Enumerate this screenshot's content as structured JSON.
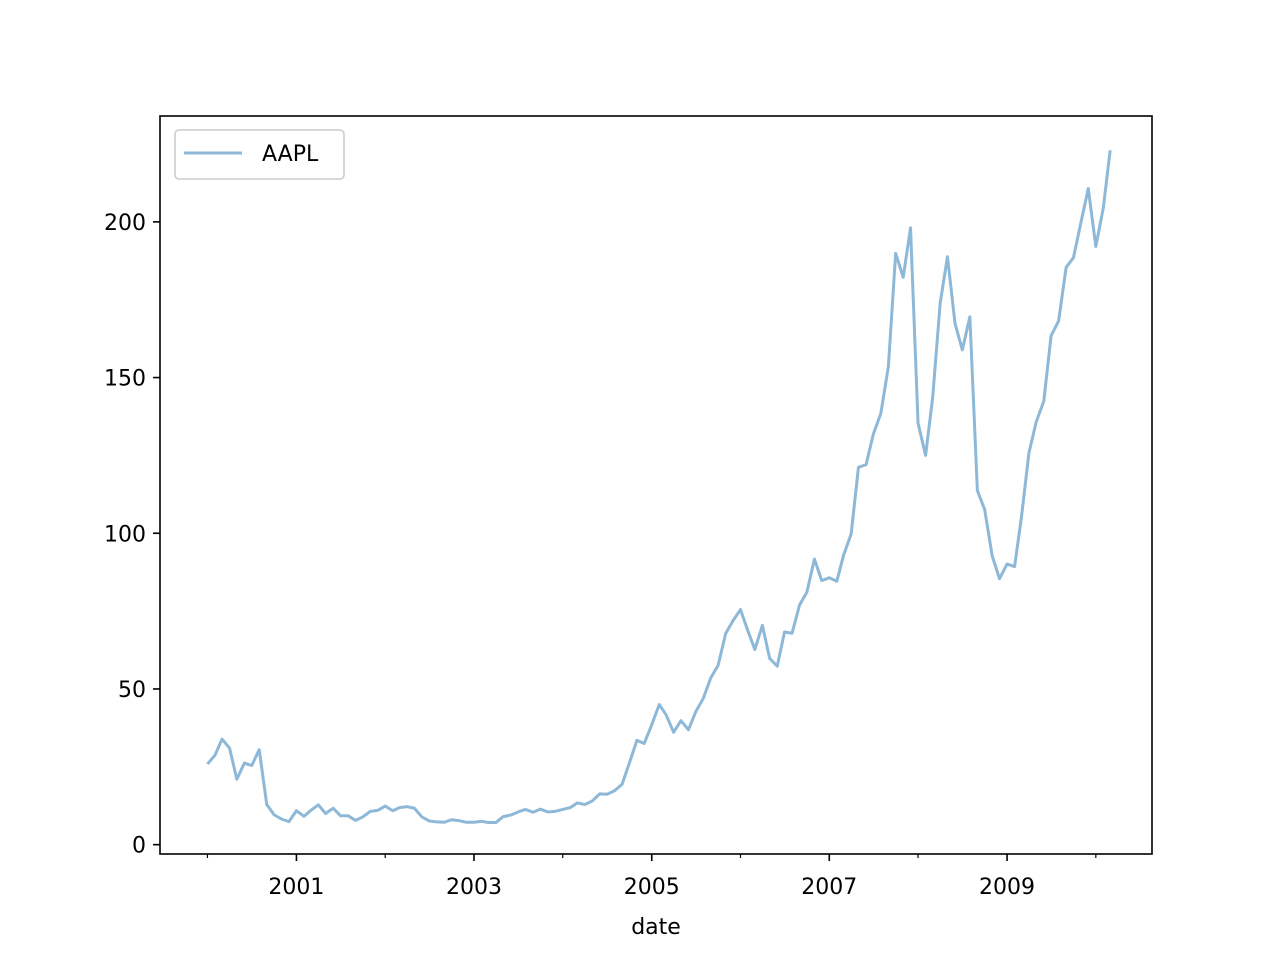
{
  "chart_data": {
    "type": "line",
    "title": "",
    "xlabel": "date",
    "ylabel": "",
    "x_tick_labels": [
      "2001",
      "2003",
      "2005",
      "2007",
      "2009"
    ],
    "x_tick_years": [
      2001,
      2003,
      2005,
      2007,
      2009
    ],
    "x_minor_tick_years": [
      2000,
      2002,
      2004,
      2006,
      2008,
      2010
    ],
    "y_ticks": [
      0,
      50,
      100,
      150,
      200
    ],
    "xlim": [
      "1999-06-20",
      "2010-08-20"
    ],
    "ylim": [
      -3,
      234
    ],
    "grid": false,
    "legend_position": "upper left",
    "series": [
      {
        "name": "AAPL",
        "color": "#8db8d8",
        "x": [
          "2000-01",
          "2000-02",
          "2000-03",
          "2000-04",
          "2000-05",
          "2000-06",
          "2000-07",
          "2000-08",
          "2000-09",
          "2000-10",
          "2000-11",
          "2000-12",
          "2001-01",
          "2001-02",
          "2001-03",
          "2001-04",
          "2001-05",
          "2001-06",
          "2001-07",
          "2001-08",
          "2001-09",
          "2001-10",
          "2001-11",
          "2001-12",
          "2002-01",
          "2002-02",
          "2002-03",
          "2002-04",
          "2002-05",
          "2002-06",
          "2002-07",
          "2002-08",
          "2002-09",
          "2002-10",
          "2002-11",
          "2002-12",
          "2003-01",
          "2003-02",
          "2003-03",
          "2003-04",
          "2003-05",
          "2003-06",
          "2003-07",
          "2003-08",
          "2003-09",
          "2003-10",
          "2003-11",
          "2003-12",
          "2004-01",
          "2004-02",
          "2004-03",
          "2004-04",
          "2004-05",
          "2004-06",
          "2004-07",
          "2004-08",
          "2004-09",
          "2004-10",
          "2004-11",
          "2004-12",
          "2005-01",
          "2005-02",
          "2005-03",
          "2005-04",
          "2005-05",
          "2005-06",
          "2005-07",
          "2005-08",
          "2005-09",
          "2005-10",
          "2005-11",
          "2005-12",
          "2006-01",
          "2006-02",
          "2006-03",
          "2006-04",
          "2006-05",
          "2006-06",
          "2006-07",
          "2006-08",
          "2006-09",
          "2006-10",
          "2006-11",
          "2006-12",
          "2007-01",
          "2007-02",
          "2007-03",
          "2007-04",
          "2007-05",
          "2007-06",
          "2007-07",
          "2007-08",
          "2007-09",
          "2007-10",
          "2007-11",
          "2007-12",
          "2008-01",
          "2008-02",
          "2008-03",
          "2008-04",
          "2008-05",
          "2008-06",
          "2008-07",
          "2008-08",
          "2008-09",
          "2008-10",
          "2008-11",
          "2008-12",
          "2009-01",
          "2009-02",
          "2009-03",
          "2009-04",
          "2009-05",
          "2009-06",
          "2009-07",
          "2009-08",
          "2009-09",
          "2009-10",
          "2009-11",
          "2009-12",
          "2010-01",
          "2010-02",
          "2010-03"
        ],
        "values": [
          25.9,
          28.7,
          33.9,
          31.0,
          21.0,
          26.2,
          25.4,
          30.5,
          12.9,
          9.6,
          8.2,
          7.4,
          10.9,
          9.1,
          11.0,
          12.8,
          10.0,
          11.7,
          9.3,
          9.3,
          7.8,
          8.9,
          10.7,
          11.0,
          12.4,
          10.9,
          11.9,
          12.2,
          11.7,
          8.9,
          7.6,
          7.3,
          7.2,
          8.0,
          7.7,
          7.2,
          7.2,
          7.5,
          7.1,
          7.1,
          9.0,
          9.5,
          10.5,
          11.3,
          10.4,
          11.4,
          10.5,
          10.7,
          11.3,
          11.9,
          13.4,
          12.9,
          14.0,
          16.3,
          16.2,
          17.3,
          19.4,
          26.2,
          33.5,
          32.5,
          38.5,
          45.0,
          41.7,
          36.1,
          39.8,
          36.9,
          42.7,
          47.0,
          53.6,
          57.6,
          67.8,
          71.9,
          75.5,
          68.5,
          62.7,
          70.4,
          59.8,
          57.3,
          68.3,
          67.9,
          77.0,
          81.1,
          91.7,
          84.8,
          85.7,
          84.6,
          93.0,
          99.8,
          121.2,
          122.0,
          131.8,
          138.5,
          153.5,
          189.9,
          182.2,
          198.1,
          135.4,
          125.0,
          143.5,
          173.9,
          188.8,
          167.4,
          158.9,
          169.5,
          113.7,
          107.6,
          92.7,
          85.4,
          90.1,
          89.3,
          105.1,
          125.8,
          135.8,
          142.4,
          163.4,
          168.2,
          185.4,
          188.5,
          199.9,
          210.7,
          192.1,
          204.6,
          223.0
        ]
      }
    ]
  }
}
